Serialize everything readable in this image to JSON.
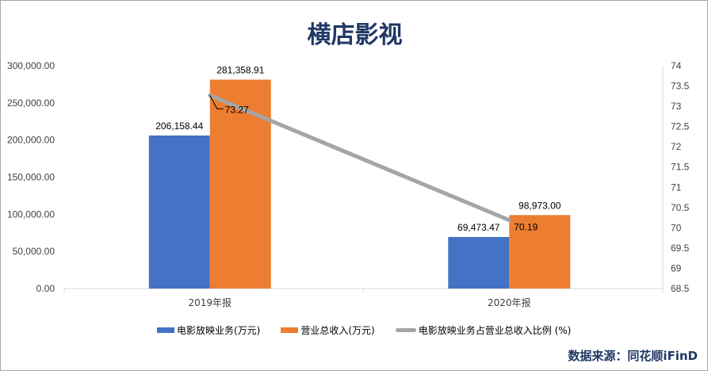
{
  "chart_data": {
    "type": "bar+line",
    "title": "横店影视",
    "categories": [
      "2019年报",
      "2020年报"
    ],
    "series": [
      {
        "name": "电影放映业务(万元)",
        "type": "bar",
        "axis": "left",
        "color": "#4472c4",
        "values": [
          206158.44,
          69473.47
        ],
        "labels": [
          "206,158.44",
          "69,473.47"
        ]
      },
      {
        "name": "营业总收入(万元)",
        "type": "bar",
        "axis": "left",
        "color": "#ed7d31",
        "values": [
          281358.91,
          98973.0
        ],
        "labels": [
          "281,358.91",
          "98,973.00"
        ]
      },
      {
        "name": "电影放映业务占营业总收入比例 (%)",
        "type": "line",
        "axis": "right",
        "color": "#a5a5a5",
        "values": [
          73.27,
          70.19
        ],
        "labels": [
          "73.27",
          "70.19"
        ]
      }
    ],
    "left_axis": {
      "ylim": [
        0,
        300000
      ],
      "ticks": [
        "0.00",
        "50,000.00",
        "100,000.00",
        "150,000.00",
        "200,000.00",
        "250,000.00",
        "300,000.00"
      ]
    },
    "right_axis": {
      "ylim": [
        68.5,
        74
      ],
      "ticks": [
        "68.5",
        "69",
        "69.5",
        "70",
        "70.5",
        "71",
        "71.5",
        "72",
        "72.5",
        "73",
        "73.5",
        "74"
      ]
    },
    "grid": false,
    "legend": "bottom"
  },
  "source": "数据来源：同花顺iFinD"
}
